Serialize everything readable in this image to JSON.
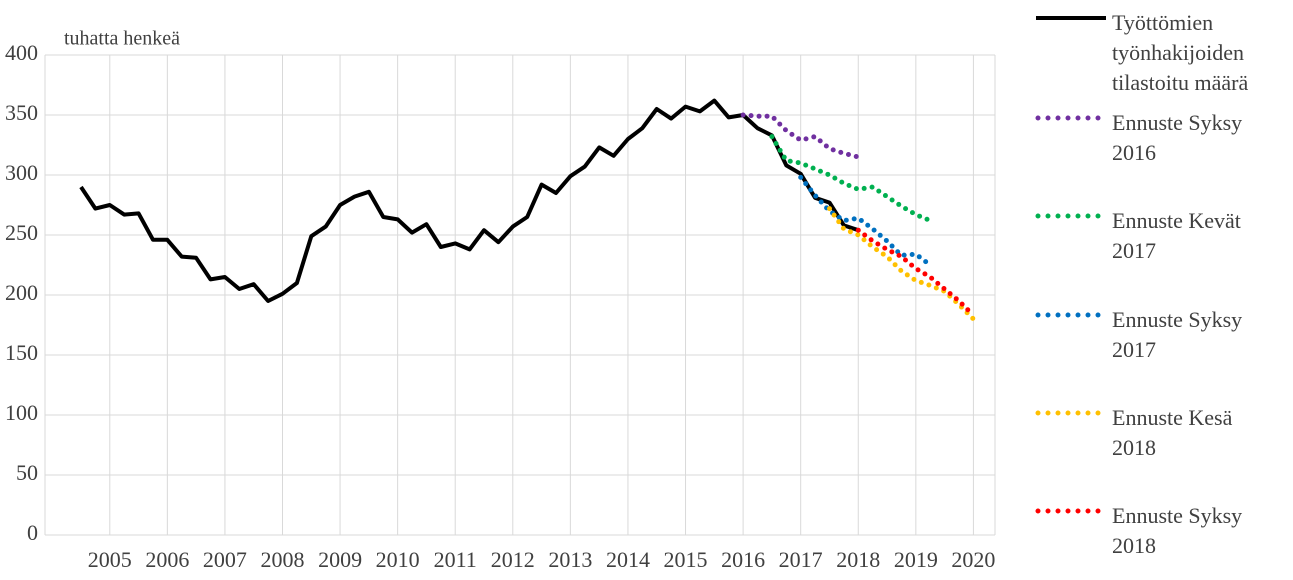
{
  "chart_data": {
    "type": "line",
    "y_label": "tuhatta henkeä",
    "categories": [
      null,
      null,
      null,
      null,
      "2005",
      null,
      null,
      null,
      "2006",
      null,
      null,
      null,
      "2007",
      null,
      null,
      null,
      "2008",
      null,
      null,
      null,
      "2009",
      null,
      null,
      null,
      "2010",
      null,
      null,
      null,
      "2011",
      null,
      null,
      null,
      "2012",
      null,
      null,
      null,
      "2013",
      null,
      null,
      null,
      "2014",
      null,
      null,
      null,
      "2015",
      null,
      null,
      null,
      "2016",
      null,
      null,
      null,
      "2017",
      null,
      null,
      null,
      "2018",
      null,
      null,
      null,
      "2019",
      null,
      null,
      null,
      "2020",
      null
    ],
    "ylim": [
      0,
      400
    ],
    "yticks": [
      0,
      50,
      100,
      150,
      200,
      250,
      300,
      350,
      400
    ],
    "grid": true,
    "series": [
      {
        "name": "Työttömien työnhakijoiden tilastoitu määrä",
        "color": "#000000",
        "style": "solid",
        "values": [
          null,
          null,
          290,
          272,
          275,
          267,
          268,
          246,
          246,
          232,
          231,
          213,
          215,
          205,
          209,
          195,
          201,
          210,
          249,
          257,
          275,
          282,
          286,
          265,
          263,
          252,
          259,
          240,
          243,
          238,
          254,
          244,
          257,
          265,
          292,
          285,
          299,
          307,
          323,
          316,
          330,
          339,
          355,
          347,
          357,
          353,
          362,
          348,
          350,
          339,
          333,
          308,
          301,
          281,
          277,
          258,
          254,
          null,
          null,
          null,
          null,
          null,
          null,
          null,
          null,
          null
        ]
      },
      {
        "name": "Ennuste Syksy 2016",
        "color": "#7030a0",
        "style": "dotted",
        "values": [
          null,
          null,
          null,
          null,
          null,
          null,
          null,
          null,
          null,
          null,
          null,
          null,
          null,
          null,
          null,
          null,
          null,
          null,
          null,
          null,
          null,
          null,
          null,
          null,
          null,
          null,
          null,
          null,
          null,
          null,
          null,
          null,
          null,
          null,
          null,
          null,
          null,
          null,
          null,
          null,
          null,
          null,
          null,
          null,
          null,
          null,
          null,
          null,
          350,
          349,
          349,
          337,
          329,
          332,
          322,
          318,
          315,
          null,
          null,
          null,
          null,
          null,
          null,
          null,
          null,
          null
        ]
      },
      {
        "name": "Ennuste Kevät 2017",
        "color": "#00b050",
        "style": "dotted",
        "values": [
          null,
          null,
          null,
          null,
          null,
          null,
          null,
          null,
          null,
          null,
          null,
          null,
          null,
          null,
          null,
          null,
          null,
          null,
          null,
          null,
          null,
          null,
          null,
          null,
          null,
          null,
          null,
          null,
          null,
          null,
          null,
          null,
          null,
          null,
          null,
          null,
          null,
          null,
          null,
          null,
          null,
          null,
          null,
          null,
          null,
          null,
          null,
          null,
          null,
          null,
          332,
          312,
          310,
          305,
          300,
          293,
          288,
          290,
          282,
          274,
          267,
          262,
          null,
          null,
          null,
          null
        ]
      },
      {
        "name": "Ennuste Syksy 2017",
        "color": "#0070c0",
        "style": "dotted",
        "values": [
          null,
          null,
          null,
          null,
          null,
          null,
          null,
          null,
          null,
          null,
          null,
          null,
          null,
          null,
          null,
          null,
          null,
          null,
          null,
          null,
          null,
          null,
          null,
          null,
          null,
          null,
          null,
          null,
          null,
          null,
          null,
          null,
          null,
          null,
          null,
          null,
          null,
          null,
          null,
          null,
          null,
          null,
          null,
          null,
          null,
          null,
          null,
          null,
          null,
          null,
          null,
          null,
          298,
          283,
          270,
          262,
          264,
          255,
          245,
          233,
          234,
          225,
          null,
          null,
          null,
          null
        ]
      },
      {
        "name": "Ennuste Kesä 2018",
        "color": "#ffc000",
        "style": "dotted",
        "values": [
          null,
          null,
          null,
          null,
          null,
          null,
          null,
          null,
          null,
          null,
          null,
          null,
          null,
          null,
          null,
          null,
          null,
          null,
          null,
          null,
          null,
          null,
          null,
          null,
          null,
          null,
          null,
          null,
          null,
          null,
          null,
          null,
          null,
          null,
          null,
          null,
          null,
          null,
          null,
          null,
          null,
          null,
          null,
          null,
          null,
          null,
          null,
          null,
          null,
          null,
          null,
          null,
          null,
          null,
          272,
          255,
          250,
          240,
          232,
          220,
          212,
          208,
          203,
          192,
          180,
          null
        ]
      },
      {
        "name": "Ennuste Syksy 2018",
        "color": "#ff0000",
        "style": "dotted",
        "values": [
          null,
          null,
          null,
          null,
          null,
          null,
          null,
          null,
          null,
          null,
          null,
          null,
          null,
          null,
          null,
          null,
          null,
          null,
          null,
          null,
          null,
          null,
          null,
          null,
          null,
          null,
          null,
          null,
          null,
          null,
          null,
          null,
          null,
          null,
          null,
          null,
          null,
          null,
          null,
          null,
          null,
          null,
          null,
          null,
          null,
          null,
          null,
          null,
          null,
          null,
          null,
          null,
          null,
          null,
          null,
          null,
          254,
          245,
          238,
          232,
          222,
          215,
          205,
          195,
          183,
          null
        ]
      }
    ]
  }
}
